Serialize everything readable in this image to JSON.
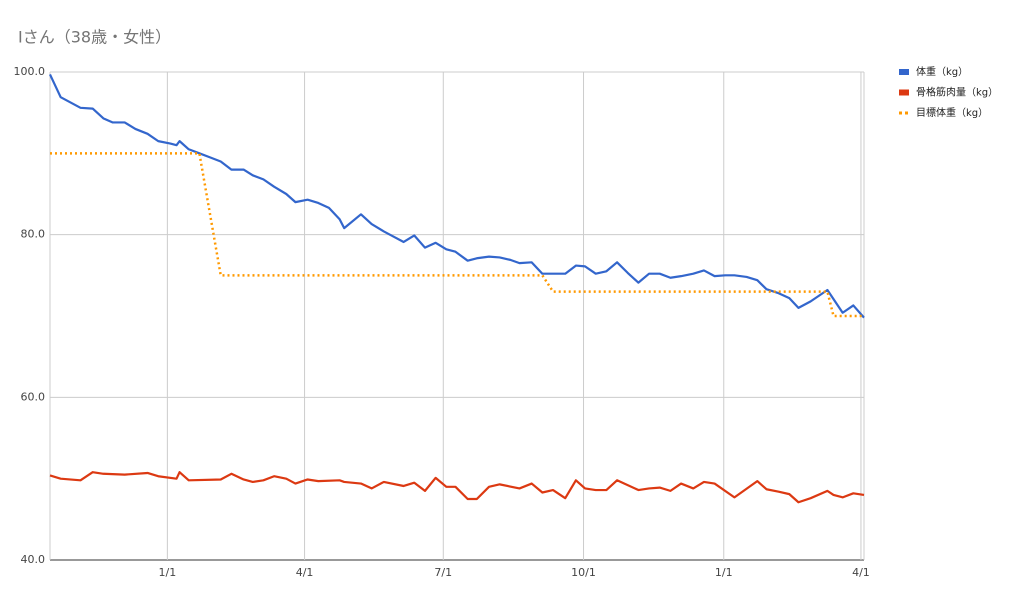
{
  "chart_data": {
    "type": "line",
    "title": "Iさん（38歳・女性）",
    "xlim": [
      0,
      534
    ],
    "xticks": [
      {
        "value": 77,
        "label": "1/1"
      },
      {
        "value": 167,
        "label": "4/1"
      },
      {
        "value": 258,
        "label": "7/1"
      },
      {
        "value": 350,
        "label": "10/1"
      },
      {
        "value": 442,
        "label": "1/1"
      },
      {
        "value": 532,
        "label": "4/1"
      }
    ],
    "ylim": [
      40,
      100
    ],
    "yticks": [
      {
        "value": 40,
        "label": "40.0"
      },
      {
        "value": 60,
        "label": "60.0"
      },
      {
        "value": 80,
        "label": "80.0"
      },
      {
        "value": 100,
        "label": "100.0"
      }
    ],
    "grid": true,
    "legend": "right",
    "series": [
      {
        "name": "体重（kg）",
        "color": "#3366cc",
        "dash": "solid",
        "x": [
          0,
          7,
          20,
          28,
          35,
          41,
          49,
          56,
          64,
          71,
          79,
          83,
          85,
          91,
          98,
          105,
          112,
          119,
          127,
          133,
          140,
          147,
          155,
          161,
          169,
          176,
          183,
          190,
          193,
          204,
          211,
          219,
          225,
          232,
          239,
          246,
          253,
          260,
          266,
          274,
          280,
          288,
          295,
          302,
          308,
          316,
          323,
          330,
          338,
          345,
          351,
          358,
          365,
          372,
          379,
          386,
          393,
          400,
          407,
          414,
          422,
          429,
          436,
          443,
          449,
          457,
          464,
          470,
          478,
          485,
          491,
          499,
          510,
          520,
          527,
          534
        ],
        "values": [
          99.7,
          96.9,
          95.6,
          95.5,
          94.3,
          93.8,
          93.8,
          93.0,
          92.4,
          91.5,
          91.2,
          91.0,
          91.5,
          90.5,
          90.0,
          89.5,
          89.0,
          88.0,
          88.0,
          87.3,
          86.8,
          85.9,
          85.0,
          84.0,
          84.3,
          83.9,
          83.3,
          81.9,
          80.8,
          82.5,
          81.3,
          80.4,
          79.8,
          79.1,
          79.9,
          78.4,
          79.0,
          78.2,
          77.9,
          76.8,
          77.1,
          77.3,
          77.2,
          76.9,
          76.5,
          76.6,
          75.2,
          75.2,
          75.2,
          76.2,
          76.1,
          75.2,
          75.5,
          76.6,
          75.3,
          74.1,
          75.2,
          75.2,
          74.7,
          74.9,
          75.2,
          75.6,
          74.9,
          75.0,
          75.0,
          74.8,
          74.4,
          73.3,
          72.8,
          72.2,
          71.0,
          71.8,
          73.2,
          70.4,
          71.3,
          69.8
        ]
      },
      {
        "name": "骨格筋肉量（kg）",
        "color": "#dc3912",
        "dash": "solid",
        "x": [
          0,
          7,
          20,
          28,
          35,
          49,
          64,
          71,
          83,
          85,
          91,
          112,
          119,
          127,
          133,
          140,
          147,
          155,
          161,
          169,
          176,
          190,
          193,
          204,
          211,
          219,
          232,
          239,
          246,
          253,
          260,
          266,
          274,
          280,
          288,
          295,
          308,
          316,
          323,
          330,
          338,
          345,
          351,
          358,
          365,
          372,
          386,
          393,
          400,
          407,
          414,
          422,
          429,
          436,
          449,
          464,
          470,
          478,
          485,
          491,
          499,
          510,
          514,
          520,
          527,
          534
        ],
        "values": [
          50.4,
          50.0,
          49.8,
          50.8,
          50.6,
          50.5,
          50.7,
          50.3,
          50.0,
          50.8,
          49.8,
          49.9,
          50.6,
          49.9,
          49.6,
          49.8,
          50.3,
          50.0,
          49.4,
          49.9,
          49.7,
          49.8,
          49.6,
          49.4,
          48.8,
          49.6,
          49.1,
          49.5,
          48.5,
          50.1,
          49.0,
          49.0,
          47.5,
          47.5,
          49.0,
          49.3,
          48.8,
          49.4,
          48.3,
          48.6,
          47.6,
          49.8,
          48.8,
          48.6,
          48.6,
          49.8,
          48.6,
          48.8,
          48.9,
          48.5,
          49.4,
          48.8,
          49.6,
          49.4,
          47.7,
          49.7,
          48.7,
          48.4,
          48.1,
          47.1,
          47.6,
          48.5,
          48.0,
          47.7,
          48.2,
          48.0
        ]
      },
      {
        "name": "目標体重（kg）",
        "color": "#ff9900",
        "dash": "dotted",
        "x": [
          0,
          98,
          112,
          323,
          330,
          510,
          514,
          534
        ],
        "values": [
          90,
          90,
          75,
          75,
          73,
          73,
          70,
          70
        ]
      }
    ]
  }
}
